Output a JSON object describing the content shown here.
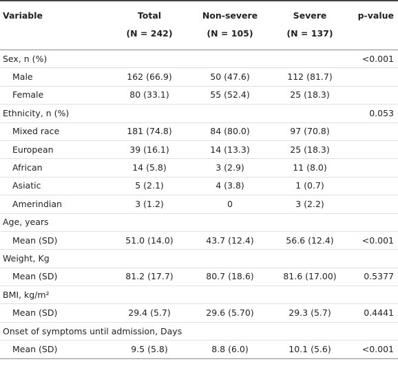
{
  "header": {
    "variable": "Variable",
    "columns": [
      {
        "name": "Total",
        "n": "(N = 242)"
      },
      {
        "name": "Non-severe",
        "n": "(N = 105)"
      },
      {
        "name": "Severe",
        "n": "(N = 137)"
      }
    ],
    "p_value": "p-value"
  },
  "groups": [
    {
      "label": "Sex, n (%)",
      "p_value": "<0.001",
      "rows": [
        {
          "label": "Male",
          "values": [
            "162 (66.9)",
            "50 (47.6)",
            "112 (81.7)"
          ]
        },
        {
          "label": "Female",
          "values": [
            "80 (33.1)",
            "55 (52.4)",
            "25 (18.3)"
          ]
        }
      ]
    },
    {
      "label": "Ethnicity, n (%)",
      "p_value": "0.053",
      "rows": [
        {
          "label": "Mixed race",
          "values": [
            "181 (74.8)",
            "84 (80.0)",
            "97 (70.8)"
          ]
        },
        {
          "label": "European",
          "values": [
            "39 (16.1)",
            "14 (13.3)",
            "25 (18.3)"
          ]
        },
        {
          "label": "African",
          "values": [
            "14 (5.8)",
            "3 (2.9)",
            "11 (8.0)"
          ]
        },
        {
          "label": "Asiatic",
          "values": [
            "5 (2.1)",
            "4 (3.8)",
            "1 (0.7)"
          ]
        },
        {
          "label": "Amerindian",
          "values": [
            "3 (1.2)",
            "0",
            "3 (2.2)"
          ]
        }
      ]
    },
    {
      "label": "Age, years",
      "rows": [
        {
          "label": "Mean (SD)",
          "values": [
            "51.0 (14.0)",
            "43.7 (12.4)",
            "56.6 (12.4)"
          ],
          "p_value": "<0.001"
        }
      ]
    },
    {
      "label": "Weight, Kg",
      "rows": [
        {
          "label": "Mean (SD)",
          "values": [
            "81.2 (17.7)",
            "80.7 (18.6)",
            "81.6 (17.00)"
          ],
          "p_value": "0.5377"
        }
      ]
    },
    {
      "label": "BMI, kg/m²",
      "rows": [
        {
          "label": "Mean (SD)",
          "values": [
            "29.4 (5.7)",
            "29.6 (5.70)",
            "29.3 (5.7)"
          ],
          "p_value": "0.4441"
        }
      ]
    },
    {
      "label": "Onset of symptoms until admission, Days",
      "rows": [
        {
          "label": "Mean (SD)",
          "values": [
            "9.5 (5.8)",
            "8.8 (6.0)",
            "10.1 (5.6)"
          ],
          "p_value": "<0.001"
        }
      ]
    }
  ]
}
